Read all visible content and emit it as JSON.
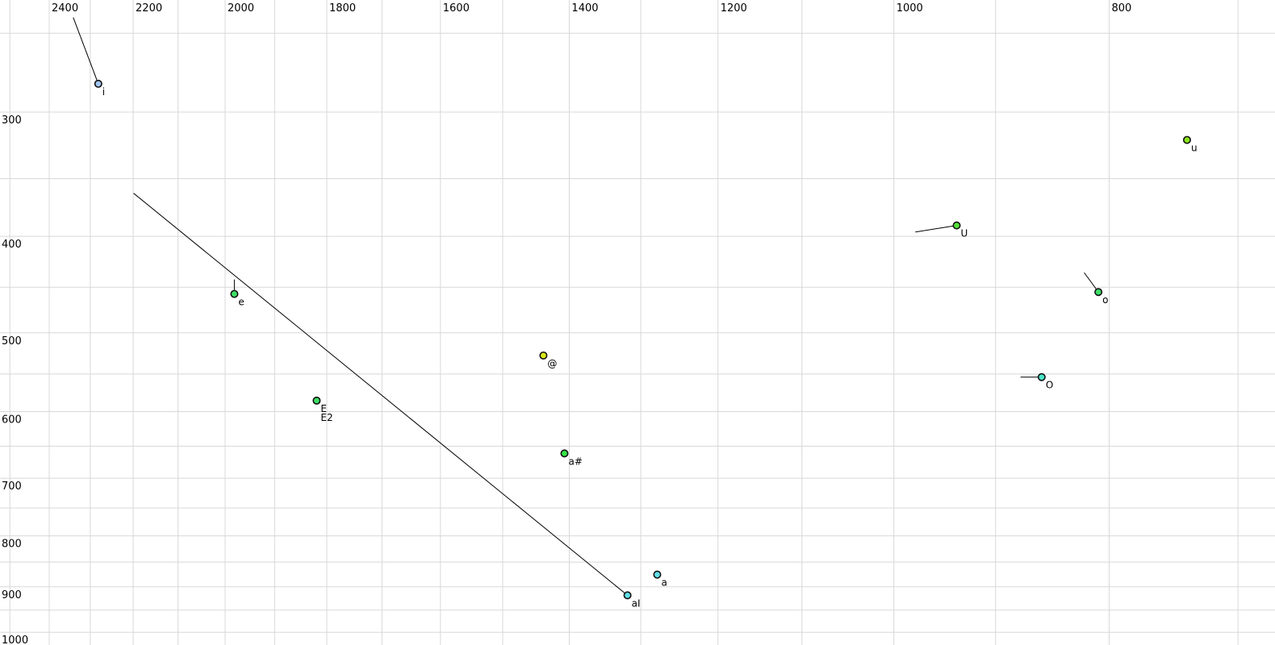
{
  "chart_data": {
    "type": "scatter",
    "description": "vowel-formant-plot",
    "x_axis": {
      "scale": "log",
      "direction": "reversed",
      "tick_labels": [
        2400,
        2200,
        2000,
        1800,
        1600,
        1400,
        1200,
        1000,
        800
      ],
      "gridlines_hz": [
        2500,
        2400,
        2300,
        2200,
        2100,
        2000,
        1900,
        1800,
        1700,
        1600,
        1500,
        1400,
        1300,
        1200,
        1100,
        1000,
        900,
        800,
        700
      ],
      "range_hz": [
        2526,
        674
      ]
    },
    "y_axis": {
      "scale": "log",
      "direction": "down",
      "tick_labels": [
        300,
        400,
        500,
        600,
        700,
        800,
        900,
        1000
      ],
      "gridlines_hz": [
        250,
        300,
        350,
        400,
        450,
        500,
        550,
        600,
        650,
        700,
        750,
        800,
        850,
        900,
        950,
        1000
      ],
      "range_hz": [
        232,
        1030
      ]
    },
    "grid": true,
    "legend": false,
    "points": [
      {
        "labels": [
          "i"
        ],
        "f2": 2281,
        "f1": 281,
        "color": "#a0c4f0",
        "tail": {
          "f2": 2341,
          "f1": 241
        }
      },
      {
        "labels": [
          "e"
        ],
        "f2": 1981,
        "f1": 457,
        "color": "#3ddf66",
        "tail": {
          "f2": 1981,
          "f1": 442
        }
      },
      {
        "labels": [
          "E",
          "E2"
        ],
        "f2": 1819,
        "f1": 585,
        "color": "#3ddf66",
        "tail": null
      },
      {
        "labels": [
          "@"
        ],
        "f2": 1438,
        "f1": 527,
        "color": "#d8e818",
        "tail": null
      },
      {
        "labels": [
          "a#"
        ],
        "f2": 1407,
        "f1": 661,
        "color": "#35e648",
        "tail": null
      },
      {
        "labels": [
          "aI"
        ],
        "f2": 1318,
        "f1": 918,
        "color": "#62dfe8",
        "tail": {
          "f2": 2199,
          "f1": 362
        }
      },
      {
        "labels": [
          "a"
        ],
        "f2": 1278,
        "f1": 875,
        "color": "#62dfe8",
        "tail": null
      },
      {
        "labels": [
          "U"
        ],
        "f2": 937,
        "f1": 390,
        "color": "#55e03a",
        "tail": {
          "f2": 978,
          "f1": 396
        }
      },
      {
        "labels": [
          "O"
        ],
        "f2": 858,
        "f1": 554,
        "color": "#4ae5c8",
        "tail": {
          "f2": 877,
          "f1": 554
        }
      },
      {
        "labels": [
          "o"
        ],
        "f2": 809,
        "f1": 455,
        "color": "#3ddf66",
        "tail": {
          "f2": 821,
          "f1": 435
        }
      },
      {
        "labels": [
          "u"
        ],
        "f2": 738,
        "f1": 320,
        "color": "#88e41c",
        "tail": null
      }
    ],
    "colors": {
      "background": "#ffffff",
      "gridline": "#d8d8d8",
      "marker_stroke": "#111111",
      "tail_line": "#000000",
      "label_text": "#000000"
    }
  }
}
